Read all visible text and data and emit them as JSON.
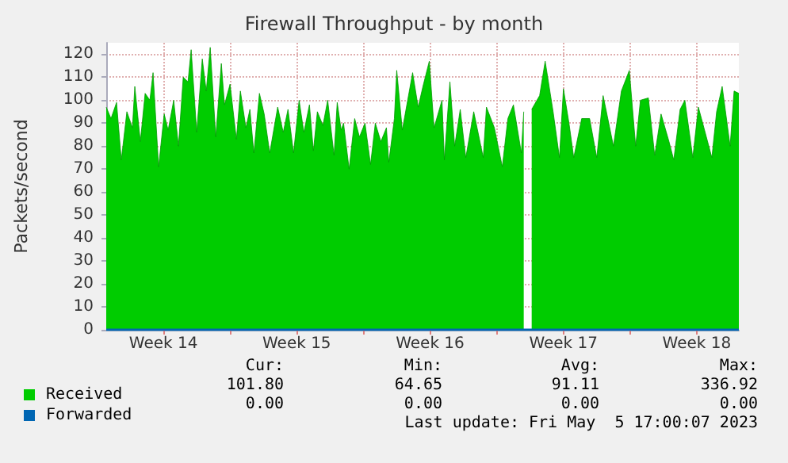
{
  "chart_data": {
    "type": "area",
    "title": "Firewall Throughput - by month",
    "ylabel": "Packets/second",
    "x": [
      "2023-04-02T12:00",
      "2023-04-02T18:00",
      "2023-04-03T01:00",
      "2023-04-03T07:00",
      "2023-04-03T14:00",
      "2023-04-03T21:00",
      "2023-04-04T00:00",
      "2023-04-04T07:00",
      "2023-04-04T13:00",
      "2023-04-04T19:00",
      "2023-04-04T23:00",
      "2023-04-05T06:00",
      "2023-04-05T13:00",
      "2023-04-05T18:00",
      "2023-04-06T01:00",
      "2023-04-06T07:00",
      "2023-04-06T13:00",
      "2023-04-06T19:00",
      "2023-04-06T23:00",
      "2023-04-07T06:00",
      "2023-04-07T13:00",
      "2023-04-07T18:00",
      "2023-04-07T23:00",
      "2023-04-08T06:00",
      "2023-04-08T13:00",
      "2023-04-08T17:00",
      "2023-04-09T00:00",
      "2023-04-09T08:00",
      "2023-04-09T13:00",
      "2023-04-09T20:00",
      "2023-04-10T01:00",
      "2023-04-10T06:00",
      "2023-04-10T13:00",
      "2023-04-10T19:00",
      "2023-04-11T02:00",
      "2023-04-11T12:00",
      "2023-04-11T19:00",
      "2023-04-12T01:00",
      "2023-04-12T08:00",
      "2023-04-12T15:00",
      "2023-04-12T21:00",
      "2023-04-13T04:00",
      "2023-04-13T09:00",
      "2023-04-13T14:00",
      "2023-04-13T21:00",
      "2023-04-14T03:00",
      "2023-04-14T11:00",
      "2023-04-14T15:00",
      "2023-04-14T20:00",
      "2023-04-14T23:00",
      "2023-04-15T06:00",
      "2023-04-15T13:00",
      "2023-04-15T19:00",
      "2023-04-16T02:00",
      "2023-04-16T09:00",
      "2023-04-16T15:00",
      "2023-04-16T22:00",
      "2023-04-17T05:00",
      "2023-04-17T08:00",
      "2023-04-17T15:00",
      "2023-04-17T18:00",
      "2023-04-18T01:00",
      "2023-04-18T14:00",
      "2023-04-18T21:00",
      "2023-04-19T03:00",
      "2023-04-19T11:00",
      "2023-04-19T17:00",
      "2023-04-20T03:00",
      "2023-04-20T06:00",
      "2023-04-20T13:00",
      "2023-04-20T19:00",
      "2023-04-21T02:00",
      "2023-04-21T09:00",
      "2023-04-21T19:00",
      "2023-04-22T07:00",
      "2023-04-22T11:00",
      "2023-04-22T21:00",
      "2023-04-23T07:00",
      "2023-04-23T14:00",
      "2023-04-23T21:00",
      "2023-04-24T07:00",
      "2023-04-24T10:00",
      "2023-04-24T13:00",
      "2023-04-24T20:00",
      "2023-04-25T06:00",
      "2023-04-25T13:00",
      "2023-04-25T23:00",
      "2023-04-26T07:00",
      "2023-04-26T12:00",
      "2023-04-26T19:00",
      "2023-04-27T01:00",
      "2023-04-27T11:00",
      "2023-04-27T21:00",
      "2023-04-28T06:00",
      "2023-04-28T14:00",
      "2023-04-29T03:00",
      "2023-04-29T13:00",
      "2023-04-29T23:00",
      "2023-04-30T07:00",
      "2023-04-30T13:00",
      "2023-04-30T23:00",
      "2023-05-01T07:00",
      "2023-05-01T15:00",
      "2023-05-02T01:00",
      "2023-05-02T07:00",
      "2023-05-02T15:00",
      "2023-05-02T21:00",
      "2023-05-03T07:00",
      "2023-05-03T14:00",
      "2023-05-03T21:00",
      "2023-05-04T07:00",
      "2023-05-04T13:00",
      "2023-05-04T20:00",
      "2023-05-05T06:00",
      "2023-05-05T11:00",
      "2023-05-05T17:00"
    ],
    "series": [
      {
        "name": "Received",
        "color": "#00cc00",
        "values": [
          97,
          92,
          99,
          74,
          95,
          88,
          106,
          82,
          103,
          100,
          112,
          71,
          94,
          87,
          100,
          80,
          110,
          108,
          122,
          86,
          118,
          104,
          123,
          84,
          116,
          98,
          107,
          83,
          104,
          88,
          96,
          77,
          103,
          94,
          77,
          97,
          86,
          96,
          77,
          100,
          86,
          98,
          78,
          95,
          89,
          100,
          76,
          99,
          87,
          90,
          70,
          92,
          84,
          90,
          72,
          90,
          82,
          88,
          73,
          92,
          113,
          87,
          112,
          97,
          106,
          117,
          88,
          100,
          74,
          108,
          80,
          96,
          75,
          95,
          75,
          97,
          88,
          71,
          92,
          98,
          77,
          95,
          null,
          96,
          102,
          117,
          95,
          75,
          105,
          90,
          75,
          92,
          92,
          75,
          102,
          80,
          104,
          113,
          80,
          100,
          101,
          76,
          94,
          82,
          74,
          96,
          100,
          75,
          97,
          88,
          75,
          95,
          106,
          80,
          104,
          103
        ]
      },
      {
        "name": "Forwarded",
        "type": "line",
        "color": "#0066b3",
        "x": [
          "2023-04-02T12:00",
          "2023-05-05T17:00"
        ],
        "values": [
          0,
          0
        ]
      }
    ],
    "xlim": [
      "2023-04-02T12:00",
      "2023-05-05T17:00"
    ],
    "xticks": [
      {
        "value": "2023-04-05T12:00",
        "label": "Week 14"
      },
      {
        "value": "2023-04-09T00:00",
        "label": null
      },
      {
        "value": "2023-04-12T12:00",
        "label": "Week 15"
      },
      {
        "value": "2023-04-16T00:00",
        "label": null
      },
      {
        "value": "2023-04-19T12:00",
        "label": "Week 16"
      },
      {
        "value": "2023-04-23T00:00",
        "label": null
      },
      {
        "value": "2023-04-26T12:00",
        "label": "Week 17"
      },
      {
        "value": "2023-04-30T00:00",
        "label": null
      },
      {
        "value": "2023-05-03T12:00",
        "label": "Week 18"
      }
    ],
    "ylim": [
      0,
      125
    ],
    "yticks": [
      0,
      10,
      20,
      30,
      40,
      50,
      60,
      70,
      80,
      90,
      100,
      110,
      120
    ],
    "grid": true,
    "legend": "bottom left",
    "annotations": [
      "Cur:",
      "Min:",
      "Avg:",
      "Max:",
      "101.80",
      "64.65",
      "91.11",
      "336.92",
      "0.00",
      "0.00",
      "0.00",
      "0.00",
      "Last update: Fri May  5 17:00:07 2023"
    ]
  }
}
